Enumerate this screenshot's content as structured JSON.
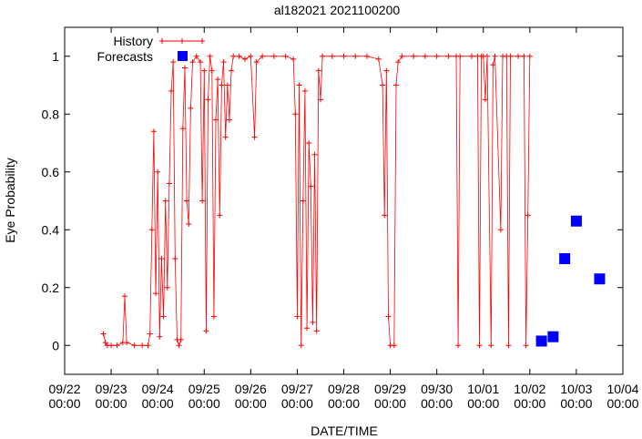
{
  "chart_data": {
    "type": "scatter",
    "title": "al182021 2021100200",
    "xlabel": "DATE/TIME",
    "ylabel": "Eye Probability",
    "xlim": [
      "09/22 00:00",
      "10/04 00:00"
    ],
    "ylim": [
      -0.1,
      1.1
    ],
    "grid": false,
    "legend_position": "top-left",
    "x_ticks": [
      {
        "date": "09/22",
        "time": "00:00"
      },
      {
        "date": "09/23",
        "time": "00:00"
      },
      {
        "date": "09/24",
        "time": "00:00"
      },
      {
        "date": "09/25",
        "time": "00:00"
      },
      {
        "date": "09/26",
        "time": "00:00"
      },
      {
        "date": "09/27",
        "time": "00:00"
      },
      {
        "date": "09/28",
        "time": "00:00"
      },
      {
        "date": "09/29",
        "time": "00:00"
      },
      {
        "date": "09/30",
        "time": "00:00"
      },
      {
        "date": "10/01",
        "time": "00:00"
      },
      {
        "date": "10/02",
        "time": "00:00"
      },
      {
        "date": "10/03",
        "time": "00:00"
      },
      {
        "date": "10/04",
        "time": "00:00"
      }
    ],
    "y_ticks": [
      "0",
      "0.2",
      "0.4",
      "0.6",
      "0.8",
      "1"
    ],
    "series": [
      {
        "name": "History",
        "style": "line-plus",
        "color": "#ff0000",
        "points": [
          [
            "09/22 20:00",
            0.04
          ],
          [
            "09/22 21:00",
            0.01
          ],
          [
            "09/22 22:00",
            0.0
          ],
          [
            "09/23 00:00",
            0.0
          ],
          [
            "09/23 03:00",
            0.0
          ],
          [
            "09/23 06:00",
            0.01
          ],
          [
            "09/23 07:00",
            0.17
          ],
          [
            "09/23 08:00",
            0.01
          ],
          [
            "09/23 12:00",
            0.0
          ],
          [
            "09/23 16:00",
            0.0
          ],
          [
            "09/23 19:00",
            0.0
          ],
          [
            "09/23 20:00",
            0.04
          ],
          [
            "09/23 21:00",
            0.4
          ],
          [
            "09/23 22:00",
            0.74
          ],
          [
            "09/23 23:00",
            0.18
          ],
          [
            "09/24 00:00",
            0.6
          ],
          [
            "09/24 01:00",
            0.03
          ],
          [
            "09/24 02:00",
            0.3
          ],
          [
            "09/24 03:00",
            0.1
          ],
          [
            "09/24 04:00",
            0.5
          ],
          [
            "09/24 05:00",
            0.2
          ],
          [
            "09/24 06:00",
            0.56
          ],
          [
            "09/24 07:00",
            0.88
          ],
          [
            "09/24 08:00",
            0.98
          ],
          [
            "09/24 09:00",
            0.3
          ],
          [
            "09/24 10:00",
            0.02
          ],
          [
            "09/24 11:00",
            0.0
          ],
          [
            "09/24 12:00",
            0.02
          ],
          [
            "09/24 13:00",
            0.75
          ],
          [
            "09/24 14:00",
            0.96
          ],
          [
            "09/24 15:00",
            0.5
          ],
          [
            "09/24 16:00",
            0.42
          ],
          [
            "09/24 17:00",
            0.82
          ],
          [
            "09/24 18:00",
            0.98
          ],
          [
            "09/24 20:00",
            1.0
          ],
          [
            "09/24 22:00",
            0.98
          ],
          [
            "09/24 23:00",
            0.5
          ],
          [
            "09/25 00:00",
            0.95
          ],
          [
            "09/25 01:00",
            0.05
          ],
          [
            "09/25 02:00",
            0.85
          ],
          [
            "09/25 03:00",
            1.0
          ],
          [
            "09/25 04:00",
            0.95
          ],
          [
            "09/25 05:00",
            0.1
          ],
          [
            "09/25 06:00",
            0.78
          ],
          [
            "09/25 07:00",
            0.92
          ],
          [
            "09/25 08:00",
            0.45
          ],
          [
            "09/25 09:00",
            0.9
          ],
          [
            "09/25 10:00",
            0.98
          ],
          [
            "09/25 11:00",
            0.72
          ],
          [
            "09/25 12:00",
            0.9
          ],
          [
            "09/25 13:00",
            0.78
          ],
          [
            "09/25 14:00",
            0.95
          ],
          [
            "09/25 15:00",
            1.0
          ],
          [
            "09/25 18:00",
            1.0
          ],
          [
            "09/25 21:00",
            0.99
          ],
          [
            "09/26 00:00",
            1.0
          ],
          [
            "09/26 02:00",
            0.72
          ],
          [
            "09/26 03:00",
            0.98
          ],
          [
            "09/26 06:00",
            1.0
          ],
          [
            "09/26 12:00",
            1.0
          ],
          [
            "09/26 18:00",
            1.0
          ],
          [
            "09/26 22:00",
            0.99
          ],
          [
            "09/26 23:00",
            0.8
          ],
          [
            "09/27 00:00",
            0.1
          ],
          [
            "09/27 01:00",
            0.9
          ],
          [
            "09/27 02:00",
            0.0
          ],
          [
            "09/27 03:00",
            0.5
          ],
          [
            "09/27 04:00",
            0.88
          ],
          [
            "09/27 05:00",
            0.06
          ],
          [
            "09/27 06:00",
            0.7
          ],
          [
            "09/27 07:00",
            0.55
          ],
          [
            "09/27 08:00",
            0.08
          ],
          [
            "09/27 09:00",
            0.66
          ],
          [
            "09/27 10:00",
            0.05
          ],
          [
            "09/27 11:00",
            0.95
          ],
          [
            "09/27 12:00",
            0.85
          ],
          [
            "09/27 13:00",
            1.0
          ],
          [
            "09/27 18:00",
            1.0
          ],
          [
            "09/28 00:00",
            1.0
          ],
          [
            "09/28 06:00",
            1.0
          ],
          [
            "09/28 12:00",
            1.0
          ],
          [
            "09/28 18:00",
            0.99
          ],
          [
            "09/28 20:00",
            0.9
          ],
          [
            "09/28 21:00",
            0.45
          ],
          [
            "09/28 22:00",
            0.95
          ],
          [
            "09/28 23:00",
            0.1
          ],
          [
            "09/29 00:00",
            0.0
          ],
          [
            "09/29 02:00",
            0.0
          ],
          [
            "09/29 03:00",
            0.9
          ],
          [
            "09/29 04:00",
            0.98
          ],
          [
            "09/29 06:00",
            1.0
          ],
          [
            "09/29 12:00",
            1.0
          ],
          [
            "09/29 18:00",
            1.0
          ],
          [
            "09/30 00:00",
            1.0
          ],
          [
            "09/30 06:00",
            1.0
          ],
          [
            "09/30 10:00",
            1.0
          ],
          [
            "09/30 11:00",
            0.0
          ],
          [
            "09/30 12:00",
            1.0
          ],
          [
            "09/30 18:00",
            1.0
          ],
          [
            "09/30 21:00",
            1.0
          ],
          [
            "09/30 22:00",
            0.0
          ],
          [
            "09/30 23:00",
            1.0
          ],
          [
            "10/01 00:00",
            1.0
          ],
          [
            "10/01 01:00",
            0.85
          ],
          [
            "10/01 02:00",
            1.0
          ],
          [
            "10/01 04:00",
            0.0
          ],
          [
            "10/01 05:00",
            0.97
          ],
          [
            "10/01 06:00",
            1.0
          ],
          [
            "10/01 09:00",
            0.4
          ],
          [
            "10/01 10:00",
            1.0
          ],
          [
            "10/01 12:00",
            1.0
          ],
          [
            "10/01 13:00",
            0.0
          ],
          [
            "10/01 14:00",
            1.0
          ],
          [
            "10/01 18:00",
            1.0
          ],
          [
            "10/01 21:00",
            1.0
          ],
          [
            "10/01 22:00",
            0.0
          ],
          [
            "10/01 23:00",
            0.45
          ],
          [
            "10/02 00:00",
            1.0
          ]
        ]
      },
      {
        "name": "Forecasts",
        "style": "square-marker",
        "color": "#0000ff",
        "points": [
          [
            "10/02 06:00",
            0.015
          ],
          [
            "10/02 12:00",
            0.03
          ],
          [
            "10/02 18:00",
            0.3
          ],
          [
            "10/03 00:00",
            0.43
          ],
          [
            "10/03 12:00",
            0.23
          ]
        ]
      }
    ]
  },
  "colors": {
    "history": "#ff0000",
    "forecast": "#0000ff",
    "axes": "#000000",
    "background": "#ffffff"
  }
}
